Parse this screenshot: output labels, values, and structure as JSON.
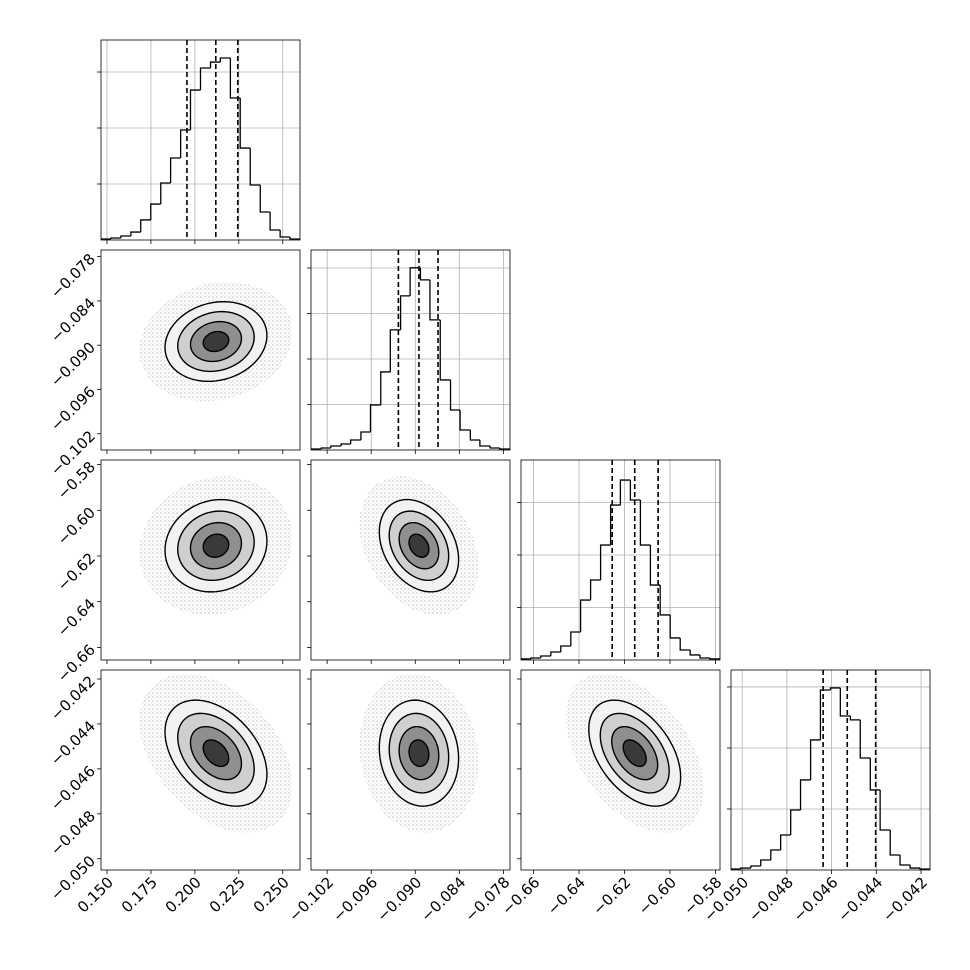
{
  "chart_data": {
    "type": "corner",
    "grid": true,
    "hist_color": "#000000",
    "scatter_extent": 3,
    "scatter_color": "#bbbbbb",
    "levels": [
      2,
      1.5,
      1,
      0.5
    ],
    "level_fills": [
      "#f2f2f2",
      "#cfcfcf",
      "#8f8f8f",
      "#3a3a3a"
    ],
    "parameters": [
      {
        "xlim": [
          0.1466,
          0.2598
        ],
        "mean": 0.212,
        "std": 0.0145,
        "ticks": [
          {
            "value": 0.15,
            "label": "0.150"
          },
          {
            "value": 0.175,
            "label": "0.175"
          },
          {
            "value": 0.2,
            "label": "0.200"
          },
          {
            "value": 0.225,
            "label": "0.225"
          },
          {
            "value": 0.25,
            "label": "0.250"
          }
        ]
      },
      {
        "xlim": [
          -0.1042,
          -0.0771
        ],
        "mean": -0.0895,
        "std": 0.0027,
        "ticks": [
          {
            "value": -0.102,
            "label": "−0.102"
          },
          {
            "value": -0.096,
            "label": "−0.096"
          },
          {
            "value": -0.09,
            "label": "−0.090"
          },
          {
            "value": -0.084,
            "label": "−0.084"
          },
          {
            "value": -0.078,
            "label": "−0.078"
          }
        ]
      },
      {
        "xlim": [
          -0.6655,
          -0.578
        ],
        "mean": -0.6155,
        "std": 0.0101,
        "ticks": [
          {
            "value": -0.66,
            "label": "−0.66"
          },
          {
            "value": -0.64,
            "label": "−0.64"
          },
          {
            "value": -0.62,
            "label": "−0.62"
          },
          {
            "value": -0.6,
            "label": "−0.60"
          },
          {
            "value": -0.58,
            "label": "−0.58"
          }
        ]
      },
      {
        "xlim": [
          -0.0505,
          -0.0416
        ],
        "mean": -0.0453,
        "std": 0.00118,
        "ticks": [
          {
            "value": -0.05,
            "label": "−0.050"
          },
          {
            "value": -0.048,
            "label": "−0.048"
          },
          {
            "value": -0.046,
            "label": "−0.046"
          },
          {
            "value": -0.044,
            "label": "−0.044"
          },
          {
            "value": -0.042,
            "label": "−0.042"
          }
        ]
      }
    ],
    "histograms": [
      {
        "bins": [
          0.1466,
          0.1523,
          0.1579,
          0.1636,
          0.1692,
          0.1749,
          0.1806,
          0.1862,
          0.1919,
          0.1975,
          0.2032,
          0.2089,
          0.2145,
          0.2202,
          0.2258,
          0.2315,
          0.2372,
          0.2428,
          0.2485,
          0.2541,
          0.2598
        ],
        "counts": [
          9,
          18,
          36,
          71,
          179,
          321,
          509,
          732,
          982,
          1339,
          1536,
          1589,
          1625,
          1268,
          821,
          491,
          250,
          89,
          27,
          9
        ],
        "ylim": [
          0,
          1786
        ],
        "yticks": [
          500,
          1000,
          1500
        ],
        "quantiles": [
          0.1955,
          0.2119,
          0.2244
        ]
      },
      {
        "bins": [
          -0.1042,
          -0.1028,
          -0.1015,
          -0.1001,
          -0.0988,
          -0.0974,
          -0.0961,
          -0.0947,
          -0.0934,
          -0.092,
          -0.0907,
          -0.0893,
          -0.088,
          -0.0866,
          -0.0852,
          -0.0839,
          -0.0825,
          -0.0812,
          -0.0798,
          -0.0785,
          -0.0771
        ],
        "counts": [
          11,
          22,
          44,
          66,
          110,
          198,
          495,
          858,
          1320,
          1694,
          2002,
          1870,
          1430,
          770,
          440,
          220,
          110,
          44,
          22,
          11
        ],
        "ylim": [
          0,
          2198
        ],
        "yticks": [
          500,
          1000,
          1500,
          2000
        ],
        "quantiles": [
          -0.0923,
          -0.0895,
          -0.0869
        ]
      },
      {
        "bins": [
          -0.6655,
          -0.6611,
          -0.6568,
          -0.6524,
          -0.648,
          -0.6436,
          -0.6393,
          -0.6349,
          -0.6305,
          -0.6261,
          -0.6218,
          -0.6174,
          -0.613,
          -0.6086,
          -0.6043,
          -0.5999,
          -0.5955,
          -0.5911,
          -0.5868,
          -0.5824,
          -0.578
        ],
        "counts": [
          10,
          19,
          38,
          76,
          133,
          267,
          571,
          762,
          1095,
          1476,
          1714,
          1524,
          1095,
          714,
          429,
          210,
          95,
          48,
          19,
          10
        ],
        "ylim": [
          0,
          1905
        ],
        "yticks": [
          500,
          1000,
          1500
        ],
        "quantiles": [
          -0.6254,
          -0.6155,
          -0.6052
        ]
      },
      {
        "bins": [
          -0.0505,
          -0.05006,
          -0.04961,
          -0.04917,
          -0.04872,
          -0.04828,
          -0.04783,
          -0.04739,
          -0.04694,
          -0.0465,
          -0.04605,
          -0.04561,
          -0.04516,
          -0.04472,
          -0.04427,
          -0.04383,
          -0.04338,
          -0.04294,
          -0.04249,
          -0.04205,
          -0.0416
        ],
        "counts": [
          8,
          16,
          33,
          82,
          164,
          287,
          492,
          738,
          1066,
          1475,
          1492,
          1262,
          1230,
          918,
          656,
          328,
          123,
          41,
          16,
          8
        ],
        "ylim": [
          0,
          1639
        ],
        "yticks": [
          500,
          1000,
          1500
        ],
        "quantiles": [
          -0.04638,
          -0.0453,
          -0.04403
        ]
      }
    ],
    "pairs": [
      {
        "params": [
          0,
          1
        ],
        "corr": 0.15
      },
      {
        "params": [
          0,
          2
        ],
        "corr": 0.1
      },
      {
        "params": [
          1,
          2
        ],
        "corr": -0.3
      },
      {
        "params": [
          0,
          3
        ],
        "corr": -0.4
      },
      {
        "params": [
          1,
          3
        ],
        "corr": -0.1
      },
      {
        "params": [
          2,
          3
        ],
        "corr": -0.45
      }
    ]
  }
}
